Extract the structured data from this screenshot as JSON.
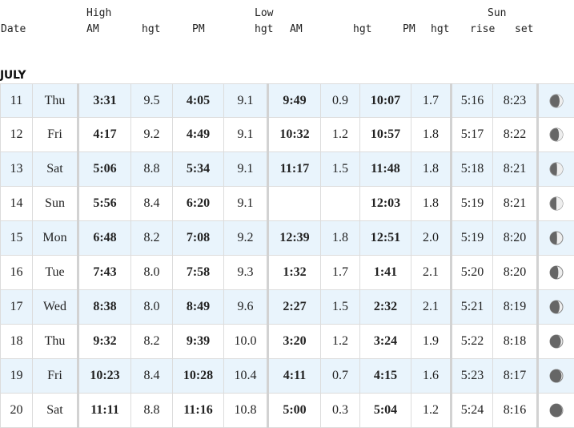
{
  "header": {
    "date": "Date",
    "high": "High",
    "low": "Low",
    "sun": "Sun",
    "high_am": "AM",
    "high_am_hgt": "hgt",
    "high_pm": "PM",
    "high_pm_hgt": "hgt",
    "low_am": "AM",
    "low_am_hgt": "hgt",
    "low_pm": "PM",
    "low_pm_hgt": "hgt",
    "rise": "rise",
    "set": "set"
  },
  "month": "JULY",
  "colors": {
    "row_alt": "#e9f4fc",
    "border": "#dcdcdc",
    "moon_dark": "#666666",
    "moon_light": "#eeeeee"
  },
  "rows": [
    {
      "date": "11",
      "day": "Thu",
      "high_am": "3:31",
      "high_am_hgt": "9.5",
      "high_pm": "4:05",
      "high_pm_hgt": "9.1",
      "low_am": "9:49",
      "low_am_hgt": "0.9",
      "low_pm": "10:07",
      "low_pm_hgt": "1.7",
      "rise": "5:16",
      "set": "8:23",
      "moon": "waxing-crescent-icon",
      "moon_lit": 0.25
    },
    {
      "date": "12",
      "day": "Fri",
      "high_am": "4:17",
      "high_am_hgt": "9.2",
      "high_pm": "4:49",
      "high_pm_hgt": "9.1",
      "low_am": "10:32",
      "low_am_hgt": "1.2",
      "low_pm": "10:57",
      "low_pm_hgt": "1.8",
      "rise": "5:17",
      "set": "8:22",
      "moon": "waxing-crescent-icon",
      "moon_lit": 0.3
    },
    {
      "date": "13",
      "day": "Sat",
      "high_am": "5:06",
      "high_am_hgt": "8.8",
      "high_pm": "5:34",
      "high_pm_hgt": "9.1",
      "low_am": "11:17",
      "low_am_hgt": "1.5",
      "low_pm": "11:48",
      "low_pm_hgt": "1.8",
      "rise": "5:18",
      "set": "8:21",
      "moon": "first-quarter-icon",
      "moon_lit": 0.45
    },
    {
      "date": "14",
      "day": "Sun",
      "high_am": "5:56",
      "high_am_hgt": "8.4",
      "high_pm": "6:20",
      "high_pm_hgt": "9.1",
      "low_am": "",
      "low_am_hgt": "",
      "low_pm": "12:03",
      "low_pm_hgt": "1.8",
      "rise": "5:19",
      "set": "8:21",
      "moon": "first-quarter-icon",
      "moon_lit": 0.5
    },
    {
      "date": "15",
      "day": "Mon",
      "high_am": "6:48",
      "high_am_hgt": "8.2",
      "high_pm": "7:08",
      "high_pm_hgt": "9.2",
      "low_am": "12:39",
      "low_am_hgt": "1.8",
      "low_pm": "12:51",
      "low_pm_hgt": "2.0",
      "rise": "5:19",
      "set": "8:20",
      "moon": "first-quarter-icon",
      "moon_lit": 0.55
    },
    {
      "date": "16",
      "day": "Tue",
      "high_am": "7:43",
      "high_am_hgt": "8.0",
      "high_pm": "7:58",
      "high_pm_hgt": "9.3",
      "low_am": "1:32",
      "low_am_hgt": "1.7",
      "low_pm": "1:41",
      "low_pm_hgt": "2.1",
      "rise": "5:20",
      "set": "8:20",
      "moon": "waxing-gibbous-icon",
      "moon_lit": 0.65
    },
    {
      "date": "17",
      "day": "Wed",
      "high_am": "8:38",
      "high_am_hgt": "8.0",
      "high_pm": "8:49",
      "high_pm_hgt": "9.6",
      "low_am": "2:27",
      "low_am_hgt": "1.5",
      "low_pm": "2:32",
      "low_pm_hgt": "2.1",
      "rise": "5:21",
      "set": "8:19",
      "moon": "waxing-gibbous-icon",
      "moon_lit": 0.75
    },
    {
      "date": "18",
      "day": "Thu",
      "high_am": "9:32",
      "high_am_hgt": "8.2",
      "high_pm": "9:39",
      "high_pm_hgt": "10.0",
      "low_am": "3:20",
      "low_am_hgt": "1.2",
      "low_pm": "3:24",
      "low_pm_hgt": "1.9",
      "rise": "5:22",
      "set": "8:18",
      "moon": "waxing-gibbous-icon",
      "moon_lit": 0.85
    },
    {
      "date": "19",
      "day": "Fri",
      "high_am": "10:23",
      "high_am_hgt": "8.4",
      "high_pm": "10:28",
      "high_pm_hgt": "10.4",
      "low_am": "4:11",
      "low_am_hgt": "0.7",
      "low_pm": "4:15",
      "low_pm_hgt": "1.6",
      "rise": "5:23",
      "set": "8:17",
      "moon": "waxing-gibbous-icon",
      "moon_lit": 0.9
    },
    {
      "date": "20",
      "day": "Sat",
      "high_am": "11:11",
      "high_am_hgt": "8.8",
      "high_pm": "11:16",
      "high_pm_hgt": "10.8",
      "low_am": "5:00",
      "low_am_hgt": "0.3",
      "low_pm": "5:04",
      "low_pm_hgt": "1.2",
      "rise": "5:24",
      "set": "8:16",
      "moon": "waxing-gibbous-icon",
      "moon_lit": 0.95
    }
  ]
}
